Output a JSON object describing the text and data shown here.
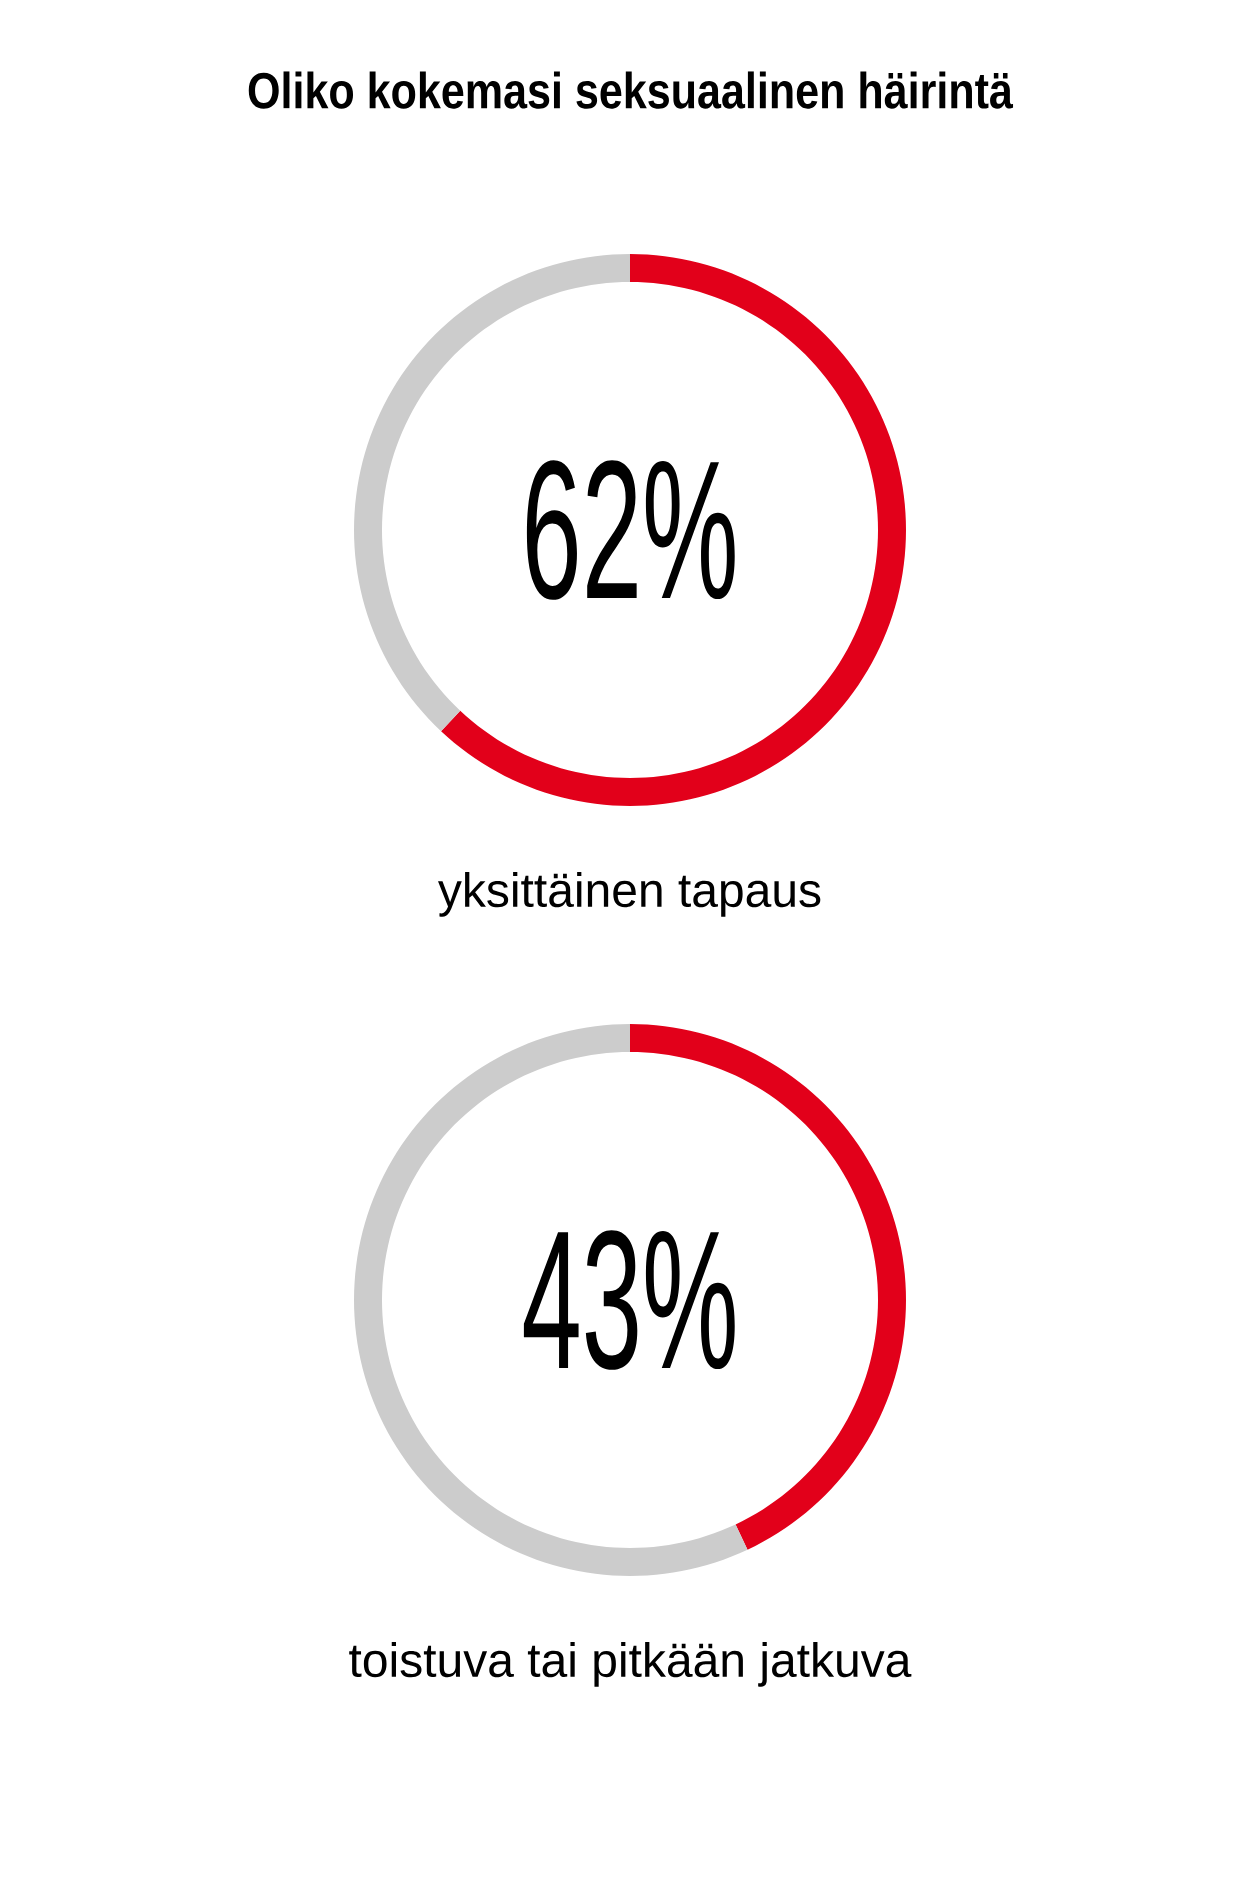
{
  "chart_data": [
    {
      "type": "donut",
      "title": "Oliko kokemasi seksuaalinen häirintä",
      "xlabel": "yksittäinen tapaus",
      "categories": [
        null,
        null
      ],
      "values": [
        62,
        38
      ],
      "colors": [
        "#e2001a",
        "#cccccc"
      ],
      "annotations": [
        "62%"
      ]
    },
    {
      "type": "donut",
      "xlabel": "toistuva tai pitkään jatkuva",
      "categories": [
        null,
        null
      ],
      "values": [
        43,
        57
      ],
      "colors": [
        "#e2001a",
        "#cccccc"
      ],
      "annotations": [
        "43%"
      ]
    }
  ]
}
